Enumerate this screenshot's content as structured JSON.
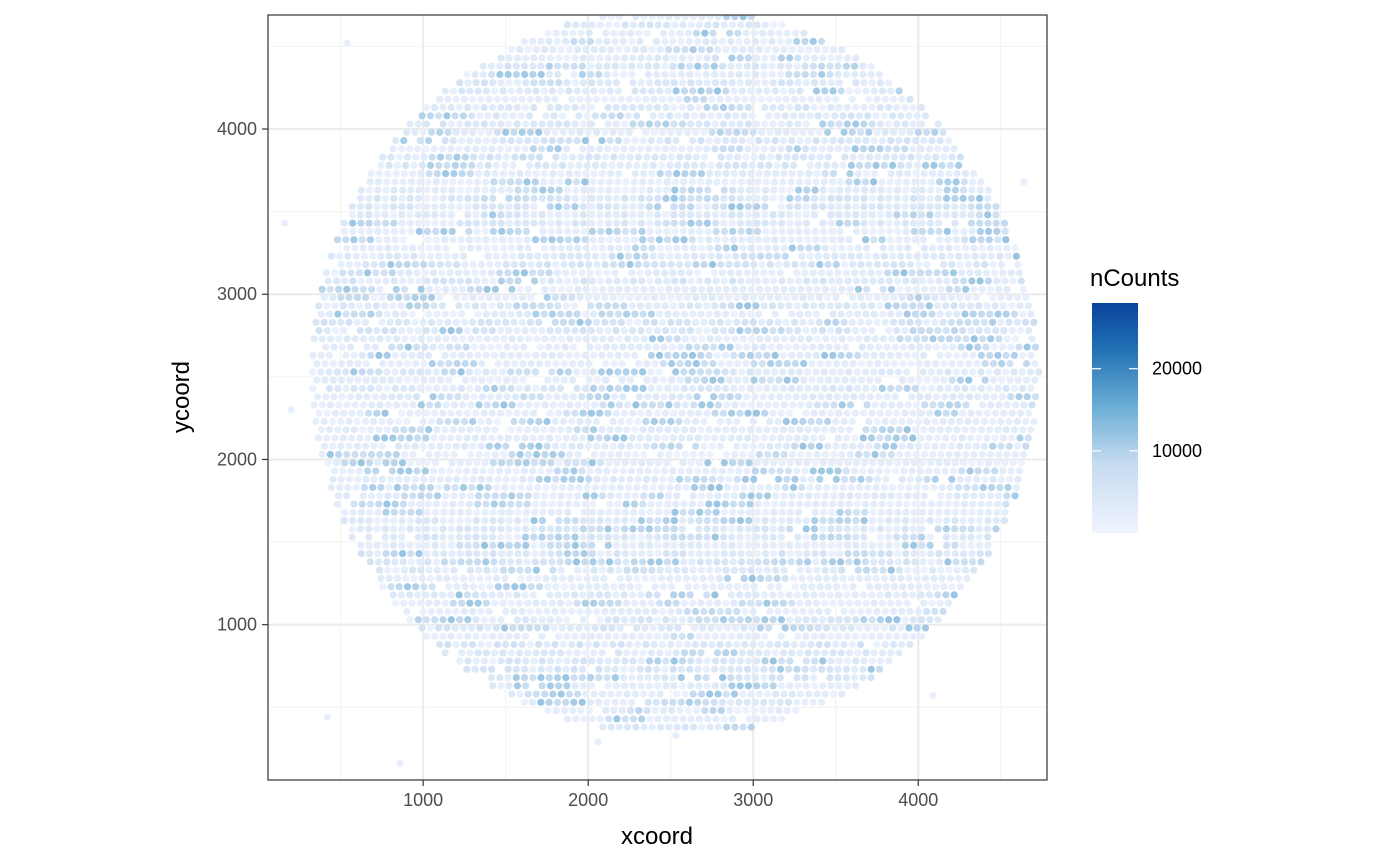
{
  "chart_data": {
    "type": "scatter",
    "title": "",
    "xlabel": "xcoord",
    "ylabel": "ycoord",
    "xlim": [
      60,
      4780
    ],
    "ylim": [
      60,
      4690
    ],
    "x_ticks": [
      1000,
      2000,
      3000,
      4000
    ],
    "y_ticks": [
      1000,
      2000,
      3000,
      4000
    ],
    "x_tick_labels": [
      "1000",
      "2000",
      "3000",
      "4000"
    ],
    "y_tick_labels": [
      "1000",
      "2000",
      "3000",
      "4000"
    ],
    "grid": true,
    "theme": "bw",
    "spot_layout": {
      "shape": "circle",
      "center": [
        2530,
        2530
      ],
      "radius": 2200,
      "x_step": 50,
      "y_step": 50
    },
    "color_scale": {
      "name": "nCounts",
      "low": "#f0f4ff",
      "high": "#08429b",
      "range": [
        0,
        28000
      ],
      "breaks": [
        10000,
        20000
      ],
      "break_labels": [
        "10000",
        "20000"
      ]
    },
    "typical_value_range": [
      0,
      12000
    ],
    "outlier_spots": [
      {
        "x": 540,
        "y": 4520
      },
      {
        "x": 160,
        "y": 3430
      },
      {
        "x": 200,
        "y": 2300
      },
      {
        "x": 420,
        "y": 440
      },
      {
        "x": 860,
        "y": 160
      },
      {
        "x": 2060,
        "y": 290
      },
      {
        "x": 4090,
        "y": 570
      },
      {
        "x": 4640,
        "y": 3680
      }
    ],
    "legend_position": "right"
  }
}
